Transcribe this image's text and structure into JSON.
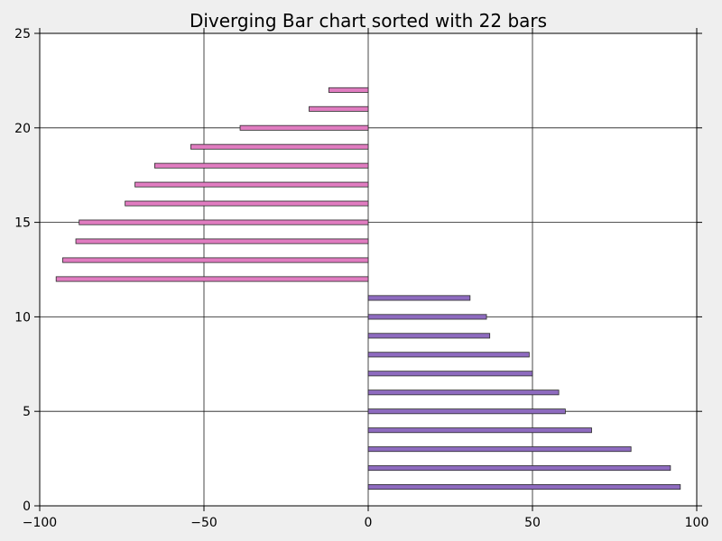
{
  "chart_data": {
    "type": "bar",
    "orientation": "horizontal",
    "title": "Diverging Bar chart sorted with 22 bars",
    "xlabel": "",
    "ylabel": "",
    "xlim": [
      -100,
      100
    ],
    "ylim": [
      0,
      25
    ],
    "x_ticks": [
      -100,
      -50,
      0,
      50,
      100
    ],
    "x_tick_labels": [
      "−100",
      "−50",
      "0",
      "50",
      "100"
    ],
    "y_ticks": [
      0,
      5,
      10,
      15,
      20,
      25
    ],
    "y_tick_labels": [
      "0",
      "5",
      "10",
      "15",
      "20",
      "25"
    ],
    "grid": true,
    "colors": {
      "positive": "#8e6bbf",
      "negative": "#e07cc0",
      "edge": "#2b2b2b",
      "grid": "#1a1a1a",
      "axes_bg": "#ffffff",
      "figure_bg": "#efefef"
    },
    "y": [
      1,
      2,
      3,
      4,
      5,
      6,
      7,
      8,
      9,
      10,
      11,
      12,
      13,
      14,
      15,
      16,
      17,
      18,
      19,
      20,
      21,
      22
    ],
    "values": [
      95,
      92,
      80,
      68,
      60,
      58,
      50,
      49,
      37,
      36,
      31,
      -95,
      -93,
      -89,
      -88,
      -74,
      -71,
      -65,
      -54,
      -39,
      -18,
      -12
    ]
  }
}
